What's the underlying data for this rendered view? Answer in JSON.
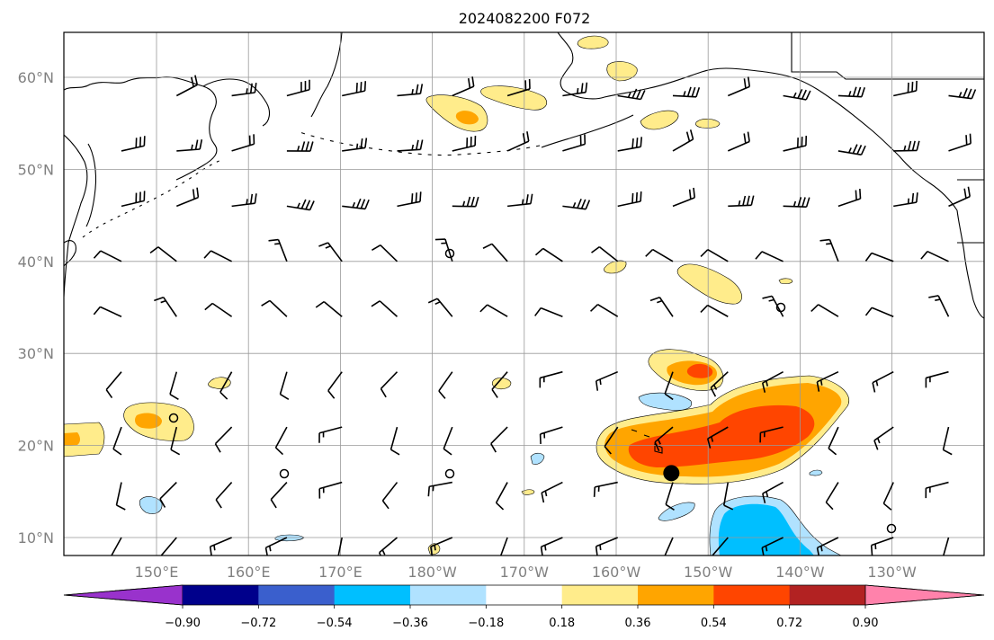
{
  "title": "2024082200 F072",
  "lat_labels": [
    "10°N",
    "20°N",
    "30°N",
    "40°N",
    "50°N",
    "60°N"
  ],
  "lat_values": [
    10,
    20,
    30,
    40,
    50,
    60
  ],
  "lon_labels": [
    "150°E",
    "160°E",
    "170°E",
    "180°W",
    "170°W",
    "160°W",
    "150°W",
    "140°W",
    "130°W"
  ],
  "lon_values": [
    150,
    160,
    170,
    180,
    190,
    200,
    210,
    220,
    230
  ],
  "colorbar": {
    "levels": [
      "−0.90",
      "−0.72",
      "−0.54",
      "−0.36",
      "−0.18",
      "0.18",
      "0.36",
      "0.54",
      "0.72",
      "0.90"
    ],
    "colors": [
      "#9932cc",
      "#00008b",
      "#3a5fcd",
      "#00bfff",
      "#b0e2ff",
      "#ffffff",
      "#ffec8b",
      "#ffa500",
      "#ff4500",
      "#b22222",
      "#ff82ab"
    ]
  },
  "colors": {
    "light_yellow": "#ffec8b",
    "orange": "#ffa500",
    "red_orange": "#ff4500",
    "dark_red": "#b22222",
    "light_blue": "#b0e2ff",
    "deep_sky_blue": "#00bfff",
    "grid": "#999999",
    "axis_text": "#808080"
  },
  "marker": {
    "name": "storm-center",
    "lon": 206,
    "lat": 17
  }
}
